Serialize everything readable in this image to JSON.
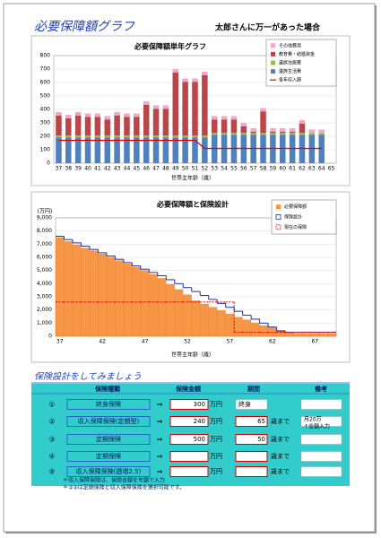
{
  "header": {
    "title": "必要保障額グラフ",
    "subtitle": "太郎さんに万一があった場合"
  },
  "chart_data": [
    {
      "type": "bar",
      "stacked": true,
      "title": "必要保障額単年グラフ",
      "x_label": "世帯主年齢（歳）",
      "categories": [
        "37",
        "38",
        "39",
        "40",
        "41",
        "42",
        "43",
        "44",
        "45",
        "46",
        "47",
        "48",
        "49",
        "50",
        "51",
        "52",
        "53",
        "54",
        "55",
        "56",
        "57",
        "58",
        "59",
        "60",
        "61",
        "62",
        "63",
        "64",
        "65"
      ],
      "series": [
        {
          "name": "その他費用",
          "color": "#f4a6c8",
          "values": [
            25,
            25,
            25,
            25,
            25,
            25,
            25,
            25,
            25,
            25,
            25,
            25,
            25,
            25,
            25,
            25,
            25,
            25,
            25,
            25,
            25,
            25,
            25,
            25,
            25,
            25,
            25,
            25,
            null
          ]
        },
        {
          "name": "教育費・結婚資金",
          "color": "#b9474a",
          "values": [
            150,
            130,
            150,
            140,
            140,
            120,
            150,
            140,
            140,
            230,
            200,
            200,
            470,
            400,
            400,
            450,
            100,
            100,
            100,
            50,
            10,
            160,
            10,
            10,
            10,
            70,
            0,
            0,
            null
          ]
        },
        {
          "name": "遺族住居費",
          "color": "#9bbb59",
          "values": [
            15,
            15,
            15,
            15,
            15,
            15,
            15,
            15,
            15,
            15,
            15,
            15,
            15,
            15,
            15,
            15,
            15,
            15,
            15,
            15,
            15,
            15,
            15,
            15,
            15,
            15,
            15,
            15,
            null
          ]
        },
        {
          "name": "遺族生活費",
          "color": "#4f81bd",
          "values": [
            190,
            190,
            190,
            190,
            190,
            190,
            190,
            190,
            190,
            190,
            190,
            190,
            190,
            190,
            190,
            190,
            210,
            210,
            210,
            210,
            210,
            210,
            210,
            210,
            210,
            210,
            210,
            210,
            null
          ]
        },
        {
          "name": "各年収入額",
          "type": "line",
          "color": "#e00000",
          "values": [
            170,
            170,
            170,
            170,
            170,
            170,
            170,
            170,
            170,
            170,
            170,
            170,
            170,
            170,
            170,
            110,
            110,
            110,
            110,
            110,
            110,
            110,
            110,
            110,
            110,
            110,
            110,
            110,
            null
          ]
        }
      ],
      "ylim": [
        0,
        800
      ],
      "yticks": [
        0,
        100,
        200,
        300,
        400,
        500,
        600,
        700,
        800
      ],
      "grid": true,
      "legend": "upper right"
    },
    {
      "type": "bar",
      "title": "必要保障額と保険設計",
      "x_label": "世帯主年齢（歳）",
      "y_unit": "(万円)",
      "categories": [
        "37",
        null,
        null,
        null,
        null,
        "42",
        null,
        null,
        null,
        null,
        "47",
        null,
        null,
        null,
        null,
        "52",
        null,
        null,
        null,
        null,
        "57",
        null,
        null,
        null,
        null,
        "62",
        null,
        null,
        null,
        null,
        "67",
        null,
        null
      ],
      "series": [
        {
          "name": "必要保障額",
          "color": "#f79646",
          "values": [
            7500,
            7200,
            6950,
            6700,
            6500,
            6250,
            6000,
            5750,
            5500,
            5250,
            5000,
            4700,
            4400,
            3950,
            3550,
            3150,
            2700,
            2450,
            2200,
            1950,
            1700,
            1450,
            1250,
            1000,
            800,
            650,
            450,
            300,
            200,
            200,
            200,
            200,
            200
          ]
        },
        {
          "name": "保険設計",
          "type": "step",
          "color": "#1f2fa0",
          "values": [
            7600,
            7350,
            7100,
            6850,
            6600,
            6350,
            6100,
            5850,
            5600,
            5350,
            5100,
            4850,
            4600,
            4300,
            4000,
            3700,
            3400,
            3100,
            2800,
            2500,
            2200,
            1900,
            1600,
            1300,
            1000,
            700,
            400,
            300,
            300,
            300,
            300,
            300,
            300
          ]
        },
        {
          "name": "現在の保険",
          "type": "step",
          "dash": true,
          "color": "#e00000",
          "values": [
            2600,
            2600,
            2600,
            2600,
            2600,
            2600,
            2600,
            2600,
            2600,
            2600,
            2600,
            2600,
            2600,
            2600,
            2600,
            2600,
            2600,
            2600,
            2600,
            2600,
            2600,
            300,
            300,
            300,
            300,
            300,
            300,
            300,
            300,
            300,
            300,
            300,
            300
          ]
        }
      ],
      "ylim": [
        0,
        9000
      ],
      "yticks": [
        0,
        {
          "value": 1000,
          "label": "1,000"
        },
        {
          "value": 2000,
          "label": "2,000"
        },
        {
          "value": 3000,
          "label": "3,000"
        },
        {
          "value": 4000,
          "label": "4,000"
        },
        {
          "value": 5000,
          "label": "5,000"
        },
        {
          "value": 6000,
          "label": "6,000"
        },
        {
          "value": 7000,
          "label": "7,000"
        },
        {
          "value": 8000,
          "label": "8,000"
        },
        {
          "value": 9000,
          "label": "9,000"
        }
      ],
      "grid": true,
      "legend": "upper right"
    }
  ],
  "section": {
    "title": "保険設計をしてみましょう",
    "columns": [
      "保険種類",
      "保険金額",
      "期間",
      "備考"
    ],
    "rows": [
      {
        "no": "①",
        "name": "終身保険",
        "arrow": "⇒",
        "amount": "300",
        "amount_unit": "万円",
        "period": "終身"
      },
      {
        "no": "②",
        "name": "収入保障保険(定額型)",
        "arrow": "⇒",
        "amount": "240",
        "amount_unit": "万円",
        "period": "65",
        "period_unit": "歳まで",
        "note": [
          "月20万",
          "↑金額入力"
        ]
      },
      {
        "no": "③",
        "name": "定期保険",
        "arrow": "⇒",
        "amount": "500",
        "amount_unit": "万円",
        "period": "50",
        "period_unit": "歳まで"
      },
      {
        "no": "④",
        "name": "定期保険",
        "arrow": "⇒",
        "amount_unit": "万円",
        "period_unit": "歳まで"
      },
      {
        "no": "⑤",
        "name": "収入保障保険(逓増2.5)",
        "arrow": "⇒",
        "amount_unit": "万円",
        "period_unit": "歳まで"
      }
    ],
    "notes": [
      "＊収入保障保険は、保険金額を年額で入力",
      "＊②③は定期保険と収入保障保険を選択可能です。"
    ]
  }
}
